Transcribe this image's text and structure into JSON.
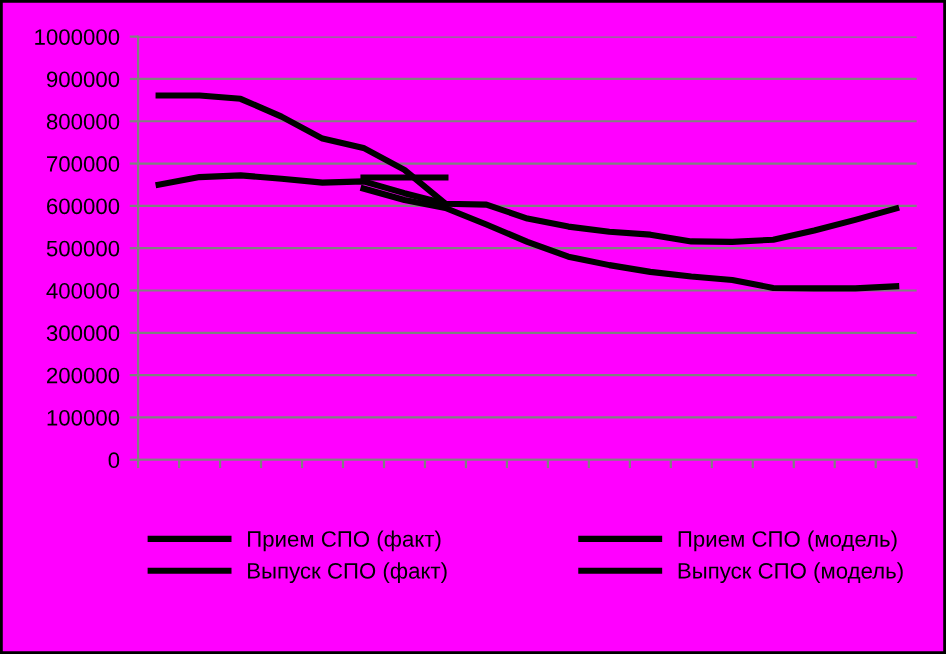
{
  "chart_data": {
    "type": "line",
    "categories": [
      null,
      null,
      null,
      null,
      null,
      null,
      null,
      null,
      null,
      null,
      null,
      null,
      null,
      null,
      null,
      null,
      null,
      null,
      null
    ],
    "series": [
      {
        "name": "Прием СПО (факт)",
        "color": "#000000",
        "values": [
          861000,
          861000,
          853000,
          811000,
          759000,
          737000,
          685000,
          605000,
          null,
          null,
          null,
          null,
          null,
          null,
          null,
          null,
          null,
          null,
          null
        ]
      },
      {
        "name": "Прием СПО (модель)",
        "color": "#000000",
        "values": [
          null,
          null,
          null,
          null,
          null,
          641000,
          614000,
          595000,
          556000,
          515000,
          480000,
          460000,
          444000,
          433000,
          425000,
          406000,
          405000,
          405000,
          410000
        ]
      },
      {
        "name": "Выпуск СПО (факт)",
        "color": "#000000",
        "values": [
          650000,
          668000,
          672000,
          664000,
          655000,
          658000,
          630000,
          605000,
          603000,
          570000,
          551000,
          539000,
          532000,
          516000,
          515000,
          520000,
          542000,
          567000,
          594000
        ]
      },
      {
        "name": "Выпуск СПО (модель)",
        "color": "#000000",
        "values": [
          null,
          null,
          null,
          null,
          null,
          667000,
          667000,
          667000,
          null,
          null,
          null,
          null,
          null,
          null,
          null,
          null,
          null,
          null,
          null
        ]
      }
    ],
    "ylim": [
      0,
      1000000
    ],
    "yticks": [
      0,
      100000,
      200000,
      300000,
      400000,
      500000,
      600000,
      700000,
      800000,
      900000,
      1000000
    ],
    "grid": "y",
    "legend": "bottom",
    "tick_labels": "y",
    "marker": "none",
    "line_style": "solid"
  }
}
